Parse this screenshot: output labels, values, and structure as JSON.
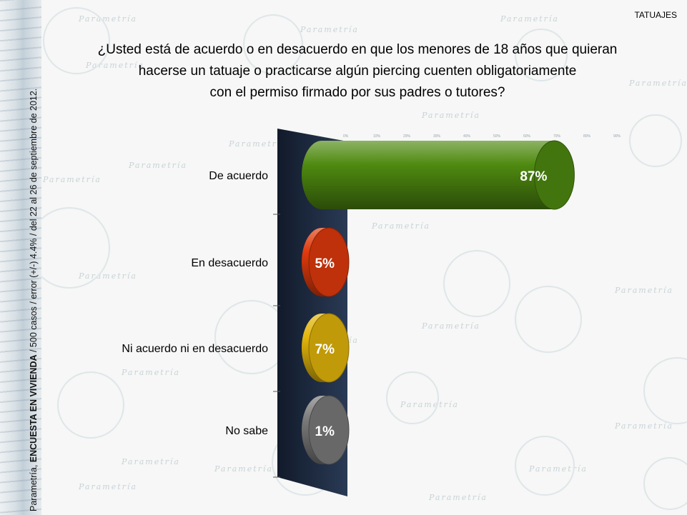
{
  "page": {
    "tag": "TATUAJES",
    "question_lines": [
      "¿Usted está de acuerdo o en desacuerdo en que los menores de 18 años que quieran",
      "hacerse un tatuaje o practicarse algún piercing cuenten obligatoriamente",
      "con el permiso firmado por sus padres o tutores?"
    ],
    "source_prefix": "Parametría, ",
    "source_bold": "ENCUESTA EN VIVIENDA",
    "source_suffix": " / 500 casos / error (+/-) 4.4% / del 22 al 26 de septiembre de 2012.",
    "watermark": "Parametría"
  },
  "chart_data": {
    "type": "bar",
    "orientation": "horizontal",
    "categories": [
      "De acuerdo",
      "En desacuerdo",
      "Ni acuerdo ni en desacuerdo",
      "No sabe"
    ],
    "values": [
      87,
      5,
      7,
      1
    ],
    "value_labels": [
      "87%",
      "5%",
      "7%",
      "1%"
    ],
    "colors": [
      "#4f8a10",
      "#e03a0c",
      "#e2b50a",
      "#7a7a7a"
    ],
    "top_tick_labels": [
      "0%",
      "10%",
      "20%",
      "30%",
      "40%",
      "50%",
      "60%",
      "70%",
      "80%",
      "90%"
    ],
    "xlim": [
      0,
      100
    ],
    "grid": false,
    "legend": "none"
  }
}
